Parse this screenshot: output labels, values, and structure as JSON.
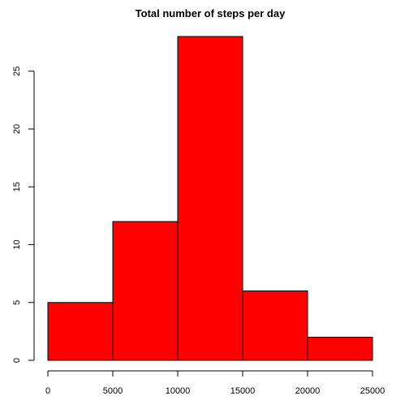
{
  "chart_data": {
    "type": "bar",
    "title": "Total number of steps per day",
    "xlabel": "",
    "ylabel": "",
    "bin_edges": [
      0,
      5000,
      10000,
      15000,
      20000,
      25000
    ],
    "values": [
      5,
      12,
      28,
      6,
      2
    ],
    "xlim": [
      0,
      25000
    ],
    "ylim": [
      0,
      28
    ],
    "x_ticks": [
      "0",
      "5000",
      "10000",
      "15000",
      "20000",
      "25000"
    ],
    "y_ticks": [
      "0",
      "5",
      "10",
      "15",
      "20",
      "25"
    ],
    "bar_color": "#ff0000",
    "grid": false
  }
}
